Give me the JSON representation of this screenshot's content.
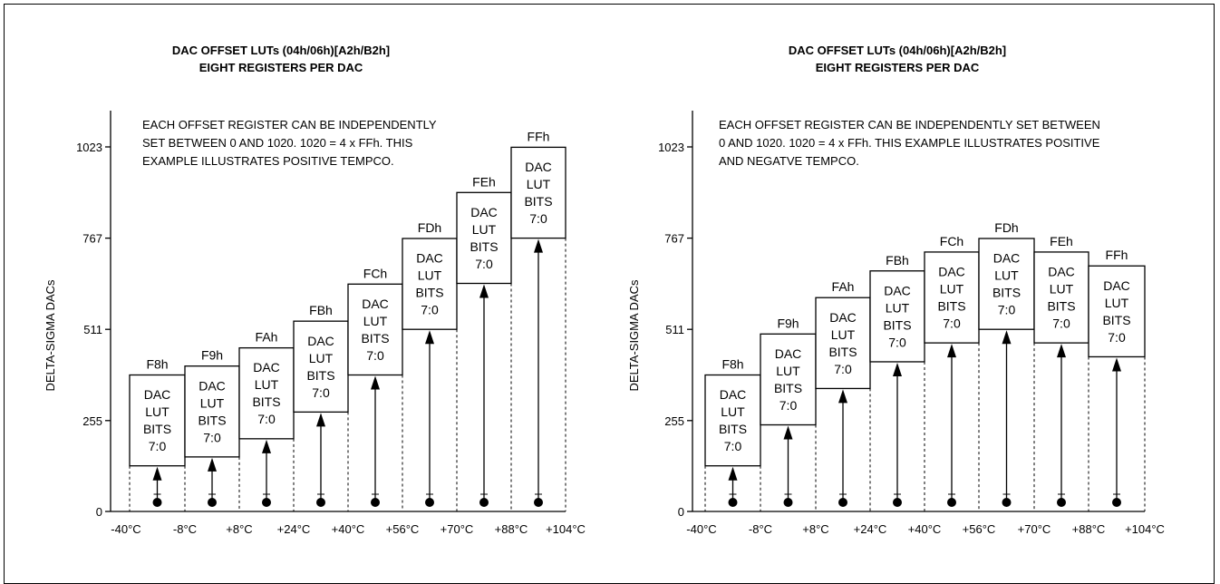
{
  "panels": [
    {
      "title_line1": "DAC OFFSET LUTs (04h/06h)[A2h/B2h]",
      "title_line2": "EIGHT REGISTERS PER DAC",
      "note_lines": [
        "EACH OFFSET REGISTER CAN BE INDEPENDENTLY",
        "SET BETWEEN 0 AND 1020. 1020 = 4 x FFh. THIS",
        "EXAMPLE ILLUSTRATES POSITIVE TEMPCO."
      ],
      "y_label": "DELTA-SIGMA DACs",
      "y_ticks": [
        "1023",
        "767",
        "511",
        "255",
        "0"
      ],
      "x_ticks": [
        "-40°C",
        "-8°C",
        "+8°C",
        "+24°C",
        "+40°C",
        "+56°C",
        "+70°C",
        "+88°C",
        "+104°C"
      ],
      "registers": [
        {
          "name": "F8h",
          "value": 128
        },
        {
          "name": "F9h",
          "value": 153
        },
        {
          "name": "FAh",
          "value": 204
        },
        {
          "name": "FBh",
          "value": 279
        },
        {
          "name": "FCh",
          "value": 383
        },
        {
          "name": "FDh",
          "value": 511
        },
        {
          "name": "FEh",
          "value": 640
        },
        {
          "name": "FFh",
          "value": 767
        }
      ],
      "box_lines": [
        "DAC",
        "LUT",
        "BITS",
        "7:0"
      ],
      "tempco": "positive"
    },
    {
      "title_line1": "DAC OFFSET LUTs (04h/06h)[A2h/B2h]",
      "title_line2": "EIGHT REGISTERS PER DAC",
      "note_lines": [
        "EACH OFFSET REGISTER CAN BE INDEPENDENTLY SET BETWEEN",
        "0 AND 1020. 1020 = 4 x FFh. THIS EXAMPLE ILLUSTRATES POSITIVE",
        "AND NEGATVE TEMPCO."
      ],
      "y_label": "DELTA-SIGMA DACs",
      "y_ticks": [
        "1023",
        "767",
        "511",
        "255",
        "0"
      ],
      "x_ticks": [
        "-40°C",
        "-8°C",
        "+8°C",
        "+24°C",
        "+40°C",
        "+56°C",
        "+70°C",
        "+88°C",
        "+104°C"
      ],
      "registers": [
        {
          "name": "F8h",
          "value": 128
        },
        {
          "name": "F9h",
          "value": 243
        },
        {
          "name": "FAh",
          "value": 345
        },
        {
          "name": "FBh",
          "value": 420
        },
        {
          "name": "FCh",
          "value": 473
        },
        {
          "name": "FDh",
          "value": 511
        },
        {
          "name": "FEh",
          "value": 473
        },
        {
          "name": "FFh",
          "value": 434
        }
      ],
      "box_lines": [
        "DAC",
        "LUT",
        "BITS",
        "7:0"
      ],
      "tempco": "positive-and-negative"
    }
  ],
  "colors": {
    "line": "#000000",
    "background": "#ffffff"
  }
}
